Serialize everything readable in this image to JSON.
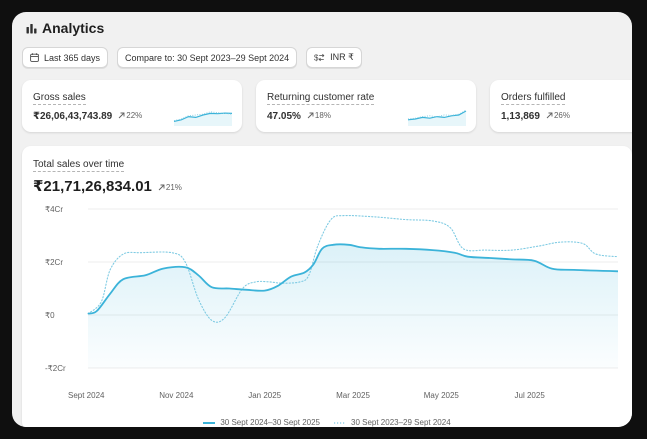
{
  "header": {
    "title": "Analytics",
    "icon": "bar-chart-icon"
  },
  "filters": {
    "date_range": "Last 365 days",
    "compare": "Compare to: 30 Sept 2023–29 Sept 2024",
    "currency": "INR ₹"
  },
  "metrics": [
    {
      "label": "Gross sales",
      "value": "₹26,06,43,743.89",
      "delta": "22%"
    },
    {
      "label": "Returning customer rate",
      "value": "47.05%",
      "delta": "18%"
    },
    {
      "label": "Orders fulfilled",
      "value": "1,13,869",
      "delta": "26%"
    }
  ],
  "main_chart": {
    "title": "Total sales over time",
    "value": "₹21,71,26,834.01",
    "delta": "21%"
  },
  "colors": {
    "current_series": "#3bb3d9",
    "previous_series": "#7fcbe3"
  },
  "chart_data": {
    "type": "line",
    "y_unit": "Cr",
    "y_ticks": [
      "₹4Cr",
      "₹2Cr",
      "₹0",
      "-₹2Cr"
    ],
    "y_tick_values": [
      4,
      2,
      0,
      -2
    ],
    "ylim": [
      -2,
      4
    ],
    "x_ticks": [
      "Sept 2024",
      "Nov 2024",
      "Jan 2025",
      "Mar 2025",
      "May 2025",
      "Jul 2025"
    ],
    "x_tick_positions": [
      0,
      2,
      4,
      6,
      8,
      10
    ],
    "xlim": [
      0,
      12
    ],
    "series": [
      {
        "name": "30 Sept 2024–30 Sept 2025",
        "style": "solid",
        "points": [
          [
            0,
            0.05
          ],
          [
            0.2,
            0.15
          ],
          [
            0.5,
            0.8
          ],
          [
            0.8,
            1.35
          ],
          [
            1.3,
            1.5
          ],
          [
            1.7,
            1.75
          ],
          [
            2.2,
            1.8
          ],
          [
            2.5,
            1.5
          ],
          [
            2.8,
            1.05
          ],
          [
            3.2,
            1.0
          ],
          [
            3.6,
            0.95
          ],
          [
            4,
            0.92
          ],
          [
            4.3,
            1.1
          ],
          [
            4.6,
            1.45
          ],
          [
            4.9,
            1.6
          ],
          [
            5.1,
            1.9
          ],
          [
            5.3,
            2.5
          ],
          [
            5.55,
            2.65
          ],
          [
            5.9,
            2.65
          ],
          [
            6.2,
            2.55
          ],
          [
            6.6,
            2.5
          ],
          [
            7.2,
            2.5
          ],
          [
            7.8,
            2.45
          ],
          [
            8.3,
            2.35
          ],
          [
            8.6,
            2.2
          ],
          [
            9.1,
            2.15
          ],
          [
            9.6,
            2.1
          ],
          [
            10.1,
            2.05
          ],
          [
            10.5,
            1.75
          ],
          [
            11,
            1.7
          ],
          [
            12,
            1.65
          ]
        ]
      },
      {
        "name": "30 Sept 2023–29 Sept 2024",
        "style": "dotted",
        "points": [
          [
            0,
            0.05
          ],
          [
            0.3,
            0.5
          ],
          [
            0.5,
            1.7
          ],
          [
            0.8,
            2.3
          ],
          [
            1.2,
            2.35
          ],
          [
            1.9,
            2.35
          ],
          [
            2.2,
            2.0
          ],
          [
            2.5,
            0.6
          ],
          [
            2.8,
            -0.2
          ],
          [
            3.1,
            -0.1
          ],
          [
            3.5,
            1.0
          ],
          [
            3.8,
            1.25
          ],
          [
            4.1,
            1.25
          ],
          [
            4.4,
            1.2
          ],
          [
            4.8,
            1.25
          ],
          [
            5.0,
            1.5
          ],
          [
            5.2,
            2.6
          ],
          [
            5.5,
            3.6
          ],
          [
            5.8,
            3.75
          ],
          [
            6.5,
            3.7
          ],
          [
            7.2,
            3.6
          ],
          [
            7.8,
            3.55
          ],
          [
            8.2,
            3.3
          ],
          [
            8.5,
            2.5
          ],
          [
            9.0,
            2.45
          ],
          [
            9.6,
            2.45
          ],
          [
            10.2,
            2.6
          ],
          [
            10.7,
            2.75
          ],
          [
            11.2,
            2.7
          ],
          [
            11.5,
            2.3
          ],
          [
            12,
            2.2
          ]
        ]
      }
    ]
  },
  "sparklines": [
    {
      "series": [
        [
          0.1,
          0.2,
          0.4,
          0.35,
          0.5,
          0.6,
          0.58,
          0.62,
          0.6
        ],
        [
          0.15,
          0.25,
          0.45,
          0.5,
          0.55,
          0.7,
          0.65,
          0.6,
          0.55
        ]
      ]
    },
    {
      "series": [
        [
          0.2,
          0.25,
          0.35,
          0.3,
          0.4,
          0.35,
          0.45,
          0.5,
          0.75
        ],
        [
          0.25,
          0.3,
          0.4,
          0.45,
          0.38,
          0.5,
          0.48,
          0.55,
          0.8
        ]
      ]
    }
  ]
}
